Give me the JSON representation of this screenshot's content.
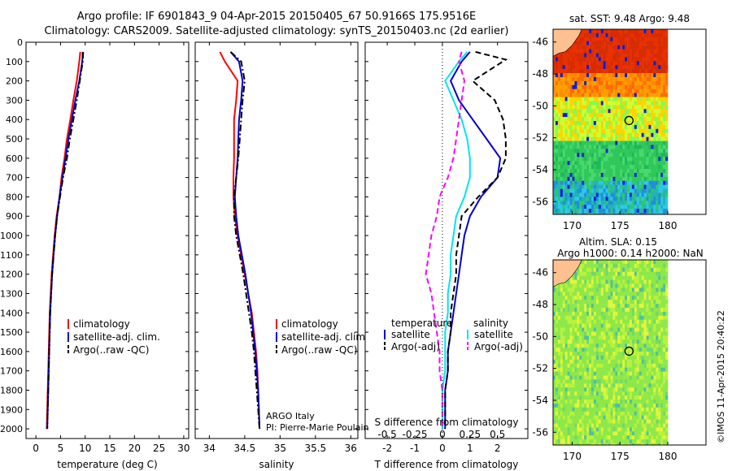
{
  "header": {
    "title_line1": "Argo profile: IF 6901843_9 04-Apr-2015 20150405_67 50.9166S 175.9516E",
    "title_line2": "Climatology: CARS2009. Satellite-adjusted climatology: synTS_20150403.nc (2d earlier)"
  },
  "footer": {
    "credit": "©IMOS 11-Apr-2015 20:40:22",
    "argo_country": "ARGO Italy",
    "argo_pi": "PI: Pierre-Marie Poulain"
  },
  "colors": {
    "climatology": "#ff0000",
    "satellite": "#0000cc",
    "argo": "#000000",
    "sat_diff": "#00e5ee",
    "argo_s_diff": "#ff00ff",
    "land": "#ffc090"
  },
  "chart_data": [
    {
      "type": "line",
      "id": "temperature",
      "xlabel": "temperature (deg C)",
      "ylabel": "",
      "xlim": [
        -2,
        31
      ],
      "ylim": [
        2050,
        0
      ],
      "xticks": [
        0,
        5,
        10,
        15,
        20,
        25,
        30
      ],
      "xtick_labels": [
        "0",
        "5",
        "10",
        "15",
        "20",
        "25",
        "30"
      ],
      "yticks": [
        0,
        100,
        200,
        300,
        400,
        500,
        600,
        700,
        800,
        900,
        1000,
        1100,
        1200,
        1300,
        1400,
        1500,
        1600,
        1700,
        1800,
        1900,
        2000
      ],
      "ytick_labels": [
        "0",
        "100",
        "200",
        "300",
        "400",
        "500",
        "600",
        "700",
        "800",
        "900",
        "1000",
        "1100",
        "1200",
        "1300",
        "1400",
        "1500",
        "1600",
        "1700",
        "1800",
        "1900",
        "2000"
      ],
      "legend": [
        "climatology",
        "satellite-adj. clim.",
        "Argo(..raw -QC)"
      ],
      "series": [
        {
          "name": "climatology",
          "style": "solid",
          "color": "#ff0000",
          "x": [
            9.0,
            8.8,
            8.3,
            7.6,
            7.0,
            6.3,
            5.8,
            5.2,
            4.8,
            4.2,
            3.8,
            3.5,
            3.2,
            3.0,
            2.8,
            2.7,
            2.6,
            2.5,
            2.4,
            2.3,
            2.2
          ],
          "y": [
            50,
            100,
            200,
            300,
            400,
            500,
            600,
            700,
            800,
            900,
            1000,
            1100,
            1200,
            1300,
            1400,
            1500,
            1600,
            1700,
            1800,
            1900,
            2000
          ]
        },
        {
          "name": "satellite-adj. clim.",
          "style": "solid",
          "color": "#0000cc",
          "x": [
            9.5,
            9.4,
            8.8,
            8.0,
            7.3,
            6.6,
            6.0,
            5.4,
            4.8,
            4.3,
            3.9,
            3.6,
            3.3,
            3.1,
            2.9,
            2.8,
            2.7,
            2.6,
            2.5,
            2.4,
            2.3
          ],
          "y": [
            50,
            100,
            200,
            300,
            400,
            500,
            600,
            700,
            800,
            900,
            1000,
            1100,
            1200,
            1300,
            1400,
            1500,
            1600,
            1700,
            1800,
            1900,
            2000
          ]
        },
        {
          "name": "Argo(..raw -QC)",
          "style": "dashdot",
          "color": "#000000",
          "x": [
            9.6,
            9.5,
            8.9,
            8.3,
            7.6,
            6.9,
            6.3,
            5.5,
            4.9,
            4.3,
            3.9,
            3.6,
            3.3,
            3.1,
            2.9,
            2.8,
            2.7,
            2.6,
            2.5,
            2.4,
            2.3
          ],
          "y": [
            50,
            100,
            200,
            300,
            400,
            500,
            600,
            700,
            800,
            900,
            1000,
            1100,
            1200,
            1300,
            1400,
            1500,
            1600,
            1700,
            1800,
            1900,
            2000
          ]
        }
      ]
    },
    {
      "type": "line",
      "id": "salinity",
      "xlabel": "salinity",
      "xlim": [
        33.8,
        36.1
      ],
      "ylim": [
        2050,
        0
      ],
      "xticks": [
        34,
        34.5,
        35,
        35.5,
        36
      ],
      "xtick_labels": [
        "34",
        "34.5",
        "35",
        "35.5",
        "36"
      ],
      "legend": [
        "climatology",
        "satellite-adj. clim.",
        "Argo(..raw -QC)"
      ],
      "series": [
        {
          "name": "climatology",
          "style": "solid",
          "color": "#ff0000",
          "x": [
            34.15,
            34.22,
            34.4,
            34.38,
            34.35,
            34.35,
            34.35,
            34.34,
            34.34,
            34.36,
            34.4,
            34.45,
            34.5,
            34.55,
            34.6,
            34.63,
            34.66,
            34.68,
            34.69,
            34.7,
            34.71
          ],
          "y": [
            50,
            100,
            200,
            300,
            400,
            500,
            600,
            700,
            800,
            900,
            1000,
            1100,
            1200,
            1300,
            1400,
            1500,
            1600,
            1700,
            1800,
            1900,
            2000
          ]
        },
        {
          "name": "satellite-adj. clim.",
          "style": "solid",
          "color": "#0000cc",
          "x": [
            34.3,
            34.42,
            34.47,
            34.45,
            34.42,
            34.41,
            34.4,
            34.38,
            34.36,
            34.38,
            34.41,
            34.46,
            34.51,
            34.55,
            34.59,
            34.62,
            34.65,
            34.67,
            34.69,
            34.7,
            34.71
          ],
          "y": [
            50,
            100,
            200,
            300,
            400,
            500,
            600,
            700,
            800,
            900,
            1000,
            1100,
            1200,
            1300,
            1400,
            1500,
            1600,
            1700,
            1800,
            1900,
            2000
          ]
        },
        {
          "name": "Argo(..raw -QC)",
          "style": "dashdot",
          "color": "#000000",
          "x": [
            34.3,
            34.45,
            34.5,
            34.47,
            34.45,
            34.43,
            34.41,
            34.38,
            34.35,
            34.35,
            34.38,
            34.43,
            34.48,
            34.52,
            34.56,
            34.6,
            34.63,
            34.65,
            34.67,
            34.69,
            34.71
          ],
          "y": [
            50,
            100,
            200,
            300,
            400,
            500,
            600,
            700,
            800,
            900,
            1000,
            1100,
            1200,
            1300,
            1400,
            1500,
            1600,
            1700,
            1800,
            1900,
            2000
          ]
        }
      ]
    },
    {
      "type": "line",
      "id": "difference",
      "xlabel": "T difference from climatology",
      "xlabel_top": "S difference from climatology",
      "xlim": [
        -2.8,
        3.1
      ],
      "ylim": [
        2050,
        0
      ],
      "xticks": [
        -2,
        -1,
        0,
        1,
        2
      ],
      "xtick_labels": [
        "-2",
        "-1",
        "0",
        "1",
        "2"
      ],
      "s_tick_positions": [
        -2,
        -1,
        0,
        1,
        2
      ],
      "s_tick_labels": [
        "-0.5",
        "-0.25",
        "0",
        "0.25",
        "0.5"
      ],
      "legend_headers": [
        "temperature",
        "salinity"
      ],
      "legend": [
        "satellite",
        "Argo(-adj)",
        "satellite",
        "Argo(-adj)"
      ],
      "series": [
        {
          "name": "satellite",
          "kind": "temperature",
          "style": "solid",
          "color": "#0000cc",
          "x": [
            1.0,
            0.7,
            0.3,
            0.6,
            1.1,
            1.6,
            2.1,
            2.0,
            1.4,
            1.0,
            0.8,
            0.7,
            0.6,
            0.5,
            0.4,
            0.3,
            0.2,
            0.2,
            0.1,
            0.1,
            0.1
          ],
          "y": [
            50,
            100,
            200,
            300,
            400,
            500,
            600,
            700,
            800,
            900,
            1000,
            1100,
            1200,
            1300,
            1400,
            1500,
            1600,
            1700,
            1800,
            1900,
            2000
          ]
        },
        {
          "name": "Argo(-adj)",
          "kind": "temperature",
          "style": "dashed",
          "color": "#000000",
          "x": [
            1.2,
            2.3,
            1.1,
            1.9,
            2.2,
            2.3,
            2.3,
            2.0,
            1.3,
            0.7,
            0.6,
            0.5,
            0.5,
            0.4,
            0.3,
            0.3,
            0.2,
            0.2,
            0.1,
            0.1,
            0.1
          ],
          "y": [
            50,
            90,
            200,
            300,
            400,
            500,
            600,
            700,
            800,
            900,
            1000,
            1100,
            1200,
            1300,
            1400,
            1500,
            1600,
            1700,
            1800,
            1900,
            2000
          ]
        },
        {
          "name": "satellite",
          "kind": "salinity",
          "style": "solid",
          "color": "#00e5ee",
          "x": [
            0.9,
            0.6,
            0.1,
            0.4,
            0.7,
            0.9,
            1.0,
            1.0,
            0.8,
            0.5,
            0.4,
            0.3,
            0.3,
            0.2,
            0.2,
            0.1,
            0.1,
            0.1,
            0.0,
            0.0,
            0.0
          ],
          "y": [
            50,
            100,
            200,
            300,
            400,
            500,
            600,
            700,
            800,
            900,
            1000,
            1100,
            1200,
            1300,
            1400,
            1500,
            1600,
            1700,
            1800,
            1900,
            2000
          ]
        },
        {
          "name": "Argo(-adj)",
          "kind": "salinity",
          "style": "dashed",
          "color": "#ff00ff",
          "x": [
            0.7,
            0.6,
            0.8,
            0.7,
            0.6,
            0.5,
            0.4,
            0.2,
            -0.1,
            -0.2,
            -0.4,
            -0.5,
            -0.6,
            -0.4,
            -0.3,
            -0.2,
            -0.1,
            -0.1,
            0.0,
            0.0,
            0.0
          ],
          "y": [
            50,
            100,
            200,
            300,
            400,
            500,
            600,
            700,
            800,
            900,
            1000,
            1100,
            1200,
            1300,
            1400,
            1500,
            1600,
            1700,
            1800,
            1900,
            2000
          ]
        }
      ]
    },
    {
      "type": "heatmap",
      "id": "sst-map",
      "title": "sat. SST: 9.48 Argo: 9.48",
      "xlim": [
        168,
        184
      ],
      "ylim": [
        -56.8,
        -45.2
      ],
      "xticks": [
        170,
        175,
        180
      ],
      "xtick_labels": [
        "170",
        "175",
        "180"
      ],
      "yticks": [
        -46,
        -48,
        -50,
        -52,
        -54,
        -56
      ],
      "ytick_labels": [
        "-46",
        "-48",
        "-50",
        "-52",
        "-54",
        "-56"
      ],
      "data_extent": [
        168,
        180
      ],
      "argo_position": {
        "lon": 175.95,
        "lat": -50.92
      }
    },
    {
      "type": "heatmap",
      "id": "sla-map",
      "title_line1": "Altim. SLA: 0.15",
      "title_line2": "Argo h1000: 0.14 h2000: NaN",
      "xlim": [
        168,
        184
      ],
      "ylim": [
        -56.8,
        -45.2
      ],
      "xticks": [
        170,
        175,
        180
      ],
      "xtick_labels": [
        "170",
        "175",
        "180"
      ],
      "yticks": [
        -46,
        -48,
        -50,
        -52,
        -54,
        -56
      ],
      "ytick_labels": [
        "-46",
        "-48",
        "-50",
        "-52",
        "-54",
        "-56"
      ],
      "data_extent": [
        168,
        180
      ],
      "argo_position": {
        "lon": 175.95,
        "lat": -50.92
      }
    }
  ]
}
